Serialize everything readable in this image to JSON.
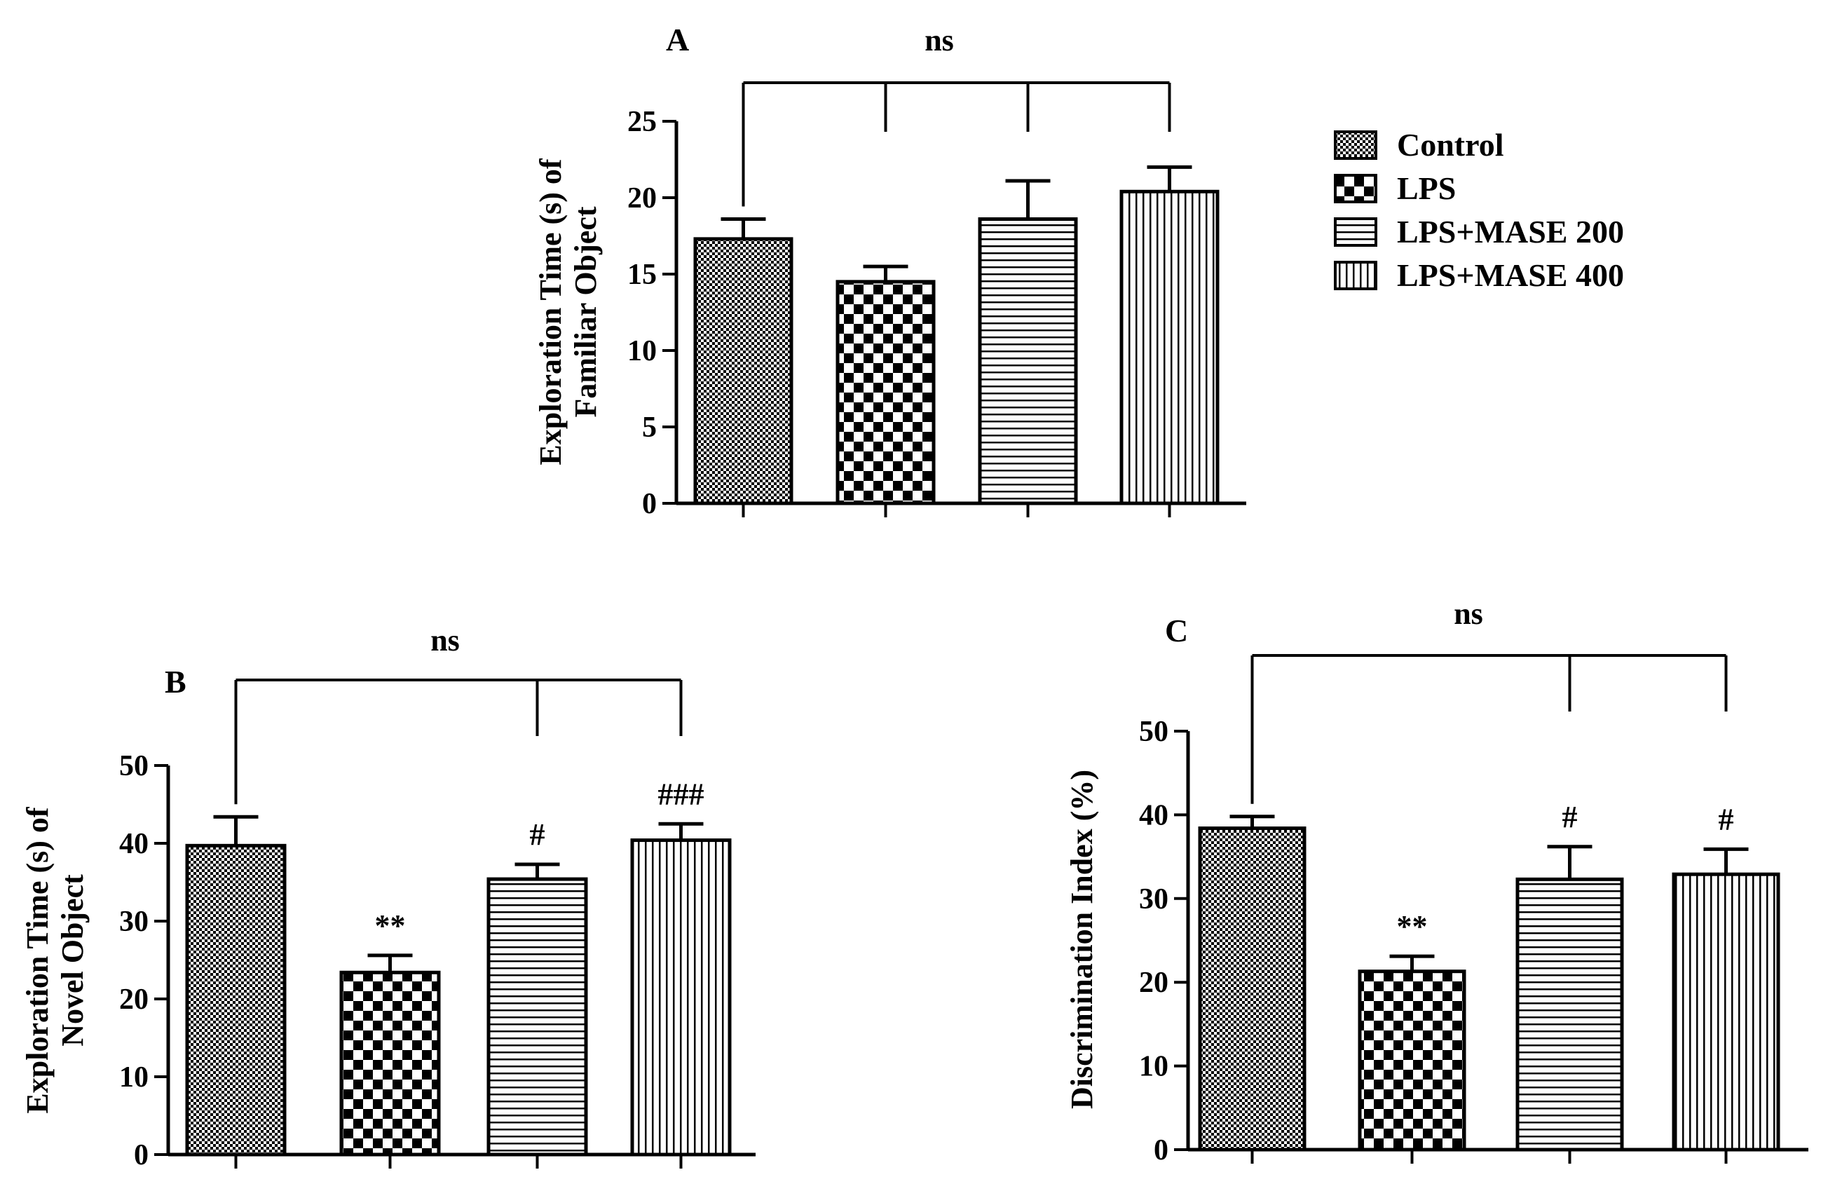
{
  "legend": [
    "Control",
    "LPS",
    "LPS+MASE 200",
    "LPS+MASE 400"
  ],
  "chart_data": [
    {
      "type": "bar",
      "panel": "A",
      "categories": [
        "Control",
        "LPS",
        "LPS+MASE 200",
        "LPS+MASE 400"
      ],
      "values": [
        17.3,
        14.5,
        18.6,
        20.4
      ],
      "errors": [
        1.3,
        1.0,
        2.5,
        1.6
      ],
      "ylabel": [
        "Exploration Time (s) of",
        "Familiar Object"
      ],
      "ylim": [
        0,
        25
      ],
      "yticks": [
        0,
        5,
        10,
        15,
        20,
        25
      ],
      "significance": [
        "",
        "",
        "",
        ""
      ],
      "bracket_label": "ns",
      "bracket_groups": [
        0,
        1,
        2,
        3
      ]
    },
    {
      "type": "bar",
      "panel": "B",
      "categories": [
        "Control",
        "LPS",
        "LPS+MASE 200",
        "LPS+MASE 400"
      ],
      "values": [
        39.7,
        23.4,
        35.4,
        40.4
      ],
      "errors": [
        3.7,
        2.2,
        1.9,
        2.1
      ],
      "ylabel": [
        "Exploration Time (s) of",
        "Novel Object"
      ],
      "ylim": [
        0,
        50
      ],
      "yticks": [
        0,
        10,
        20,
        30,
        40,
        50
      ],
      "significance": [
        "",
        "**",
        "#",
        "###"
      ],
      "bracket_label": "ns",
      "bracket_groups": [
        0,
        2,
        3
      ]
    },
    {
      "type": "bar",
      "panel": "C",
      "categories": [
        "Control",
        "LPS",
        "LPS+MASE 200",
        "LPS+MASE 400"
      ],
      "values": [
        38.4,
        21.3,
        32.3,
        32.9
      ],
      "errors": [
        1.4,
        1.8,
        3.9,
        3.0
      ],
      "ylabel": [
        "Discrimination Index (%)"
      ],
      "ylim": [
        0,
        50
      ],
      "yticks": [
        0,
        10,
        20,
        30,
        40,
        50
      ],
      "significance": [
        "",
        "**",
        "#",
        "#"
      ],
      "bracket_label": "ns",
      "bracket_groups": [
        0,
        2,
        3
      ]
    }
  ]
}
